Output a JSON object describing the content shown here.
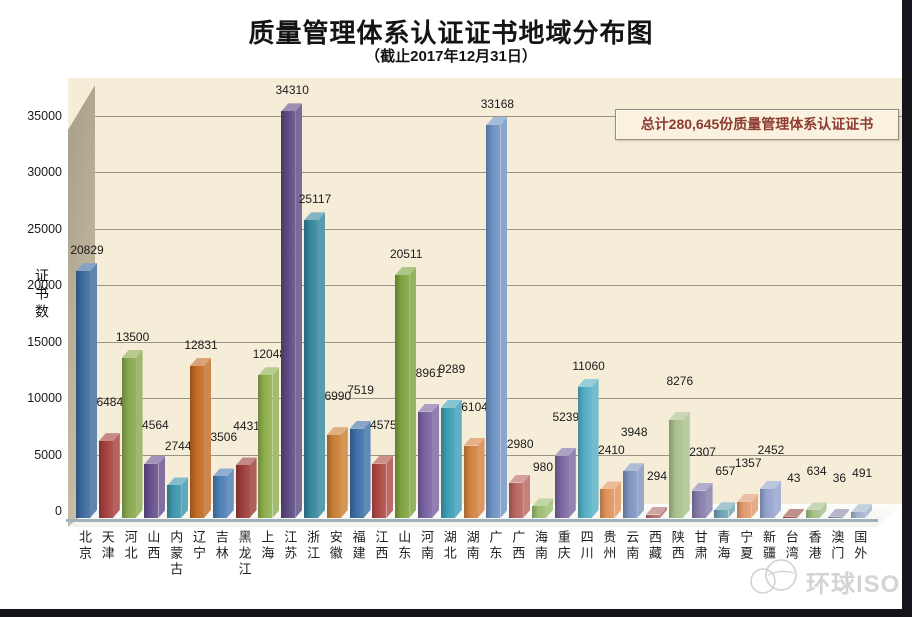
{
  "watermark": {
    "text": "环球ISO",
    "icon": "globe-sketch"
  },
  "frame": {
    "edge_color": "#14141B",
    "background": "#FFFFFF"
  },
  "chart_data": {
    "type": "bar",
    "style": "3d-column",
    "title": "质量管理体系认证证书地域分布图",
    "subtitle": "（截止2017年12月31日）",
    "annotation": "总计280,645份质量管理体系认证证书",
    "total": 280645,
    "xlabel": "",
    "ylabel": "证书数",
    "ylim": [
      0,
      35000
    ],
    "ytick_interval": 5000,
    "y_ticks": [
      "0",
      "5000",
      "10000",
      "15000",
      "20000",
      "25000",
      "30000",
      "35000"
    ],
    "grid": true,
    "legend": "none",
    "wall_color": "#F5EDD8",
    "side_wall_color": "#B5AA92",
    "gridline_color": "#9A9484",
    "categories": [
      "北京",
      "天津",
      "河北",
      "山西",
      "内蒙古",
      "辽宁",
      "吉林",
      "黑龙江",
      "上海",
      "江苏",
      "浙江",
      "安徽",
      "福建",
      "江西",
      "山东",
      "河南",
      "湖北",
      "湖南",
      "广东",
      "广西",
      "海南",
      "重庆",
      "四川",
      "贵州",
      "云南",
      "西藏",
      "陕西",
      "甘肃",
      "青海",
      "宁夏",
      "新疆",
      "台湾",
      "香港",
      "澳门",
      "国外"
    ],
    "values": [
      20829,
      6484,
      13500,
      4564,
      2744,
      12831,
      3506,
      4431,
      12048,
      34310,
      25117,
      6990,
      7519,
      4575,
      20511,
      8961,
      9289,
      6104,
      33168,
      2980,
      980,
      5239,
      11060,
      2410,
      3948,
      294,
      8276,
      2307,
      657,
      1357,
      2452,
      43,
      634,
      36,
      491
    ],
    "colors": [
      "#3D6A9E",
      "#A5403E",
      "#89A84E",
      "#67508F",
      "#3D96AC",
      "#C26B24",
      "#4B7DB5",
      "#9E3D3B",
      "#8FAE4E",
      "#5C4A80",
      "#35869B",
      "#C97F35",
      "#3E6FA6",
      "#AF4A46",
      "#7FA23F",
      "#7A62A0",
      "#3D9EB5",
      "#D28240",
      "#6E92C5",
      "#B96561",
      "#9CBE72",
      "#7B68A2",
      "#55AEC5",
      "#E0935C",
      "#7E95BE",
      "#B26E6A",
      "#A9C08C",
      "#857BAB",
      "#6FA3B5",
      "#E09A6E",
      "#93A2CD",
      "#9A4B44",
      "#A3BE85",
      "#8B88AC",
      "#9FB4C9"
    ]
  }
}
